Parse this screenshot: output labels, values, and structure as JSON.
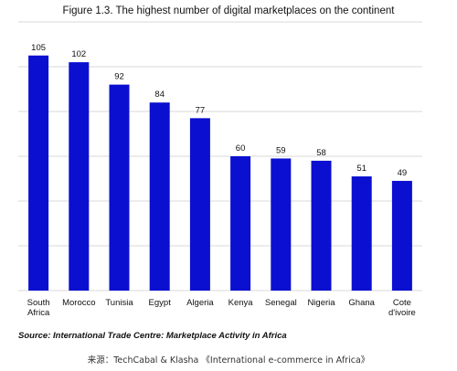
{
  "figure_title": "Figure 1.3. The highest number of digital marketplaces on the continent",
  "source_note": "Source: International Trade Centre: Marketplace Activity in Africa",
  "credit_note": "来源：TechCabal & Klasha 《International e-commerce in Africa》",
  "colors": {
    "bar": "#0a0fd0",
    "grid": "#d9d9d9",
    "text": "#111111"
  },
  "chart_data": {
    "type": "bar",
    "title": "Figure 1.3. The highest number of digital marketplaces on the continent",
    "xlabel": "",
    "ylabel": "",
    "categories": [
      "South Africa",
      "Morocco",
      "Tunisia",
      "Egypt",
      "Algeria",
      "Kenya",
      "Senegal",
      "Nigeria",
      "Ghana",
      "Cote d'ivoire"
    ],
    "category_lines": [
      [
        "South",
        "Africa"
      ],
      [
        "Morocco"
      ],
      [
        "Tunisia"
      ],
      [
        "Egypt"
      ],
      [
        "Algeria"
      ],
      [
        "Kenya"
      ],
      [
        "Senegal"
      ],
      [
        "Nigeria"
      ],
      [
        "Ghana"
      ],
      [
        "Cote",
        "d'ivoire"
      ]
    ],
    "values": [
      105,
      102,
      92,
      84,
      77,
      60,
      59,
      58,
      51,
      49
    ],
    "ylim": [
      0,
      120
    ],
    "grid": true,
    "data_labels": true
  }
}
